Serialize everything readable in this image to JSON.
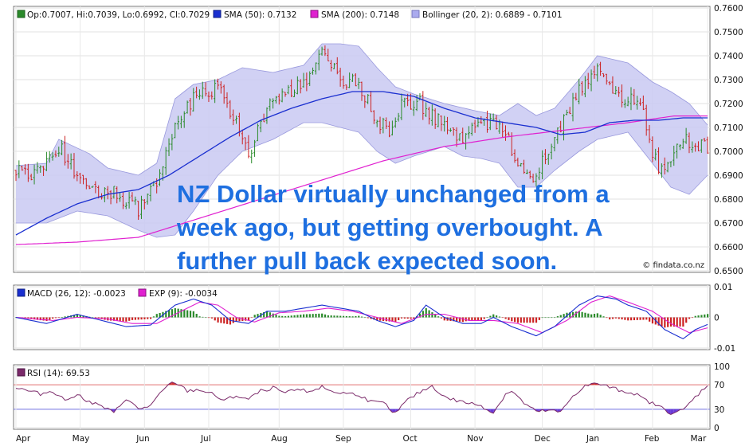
{
  "watermark": "© findata.co.nz",
  "overlay_lines": [
    "NZ Dollar virtually unchanged from a",
    "week ago, but getting overbought. A",
    "further pull back expected soon."
  ],
  "colors": {
    "up": "#2a8a2a",
    "down": "#cc2222",
    "sma50": "#1a2fd0",
    "sma200": "#e020d0",
    "bollinger_fill": "#c9c9f2",
    "bollinger_line": "#9999dd",
    "macd": "#1a2fd0",
    "exp": "#e020d0",
    "rsi": "#7b2a6a",
    "rsi_extreme": "#6a3ad8",
    "overlay_text": "#1e6fe0"
  },
  "chart_data": [
    {
      "type": "candlestick",
      "panel": "price",
      "legend": [
        {
          "label": "Op:0.7007, Hi:0.7039, Lo:0.6992, Cl:0.7029",
          "color": "#2a8a2a"
        },
        {
          "label": "SMA (50): 0.7132",
          "color": "#1a2fd0"
        },
        {
          "label": "SMA (200): 0.7148",
          "color": "#e020d0"
        },
        {
          "label": "Bollinger (20, 2): 0.6889 - 0.7101",
          "color": "#aaaaee"
        }
      ],
      "ylim": [
        0.65,
        0.76
      ],
      "y_ticks": [
        "0.7600",
        "0.7500",
        "0.7400",
        "0.7300",
        "0.7200",
        "0.7100",
        "0.7000",
        "0.6900",
        "0.6800",
        "0.6700",
        "0.6600",
        "0.6500"
      ],
      "grid": true,
      "close_points": [
        [
          0,
          0.692
        ],
        [
          6,
          0.69
        ],
        [
          14,
          0.702
        ],
        [
          24,
          0.683
        ],
        [
          32,
          0.683
        ],
        [
          40,
          0.676
        ],
        [
          46,
          0.687
        ],
        [
          52,
          0.712
        ],
        [
          58,
          0.722
        ],
        [
          66,
          0.727
        ],
        [
          72,
          0.712
        ],
        [
          76,
          0.698
        ],
        [
          82,
          0.718
        ],
        [
          88,
          0.724
        ],
        [
          96,
          0.73
        ],
        [
          100,
          0.742
        ],
        [
          106,
          0.73
        ],
        [
          112,
          0.728
        ],
        [
          118,
          0.713
        ],
        [
          122,
          0.709
        ],
        [
          126,
          0.72
        ],
        [
          132,
          0.72
        ],
        [
          140,
          0.71
        ],
        [
          146,
          0.706
        ],
        [
          152,
          0.712
        ],
        [
          158,
          0.712
        ],
        [
          164,
          0.696
        ],
        [
          168,
          0.688
        ],
        [
          172,
          0.696
        ],
        [
          178,
          0.71
        ],
        [
          184,
          0.725
        ],
        [
          190,
          0.737
        ],
        [
          196,
          0.725
        ],
        [
          200,
          0.722
        ],
        [
          204,
          0.722
        ],
        [
          208,
          0.698
        ],
        [
          212,
          0.69
        ],
        [
          218,
          0.705
        ],
        [
          222,
          0.703
        ],
        [
          226,
          0.701
        ]
      ],
      "sma50": [
        [
          0,
          0.665
        ],
        [
          10,
          0.672
        ],
        [
          20,
          0.678
        ],
        [
          30,
          0.682
        ],
        [
          40,
          0.684
        ],
        [
          50,
          0.69
        ],
        [
          60,
          0.698
        ],
        [
          70,
          0.706
        ],
        [
          80,
          0.713
        ],
        [
          90,
          0.718
        ],
        [
          100,
          0.722
        ],
        [
          110,
          0.725
        ],
        [
          120,
          0.725
        ],
        [
          130,
          0.723
        ],
        [
          140,
          0.718
        ],
        [
          150,
          0.714
        ],
        [
          160,
          0.712
        ],
        [
          170,
          0.71
        ],
        [
          178,
          0.707
        ],
        [
          186,
          0.708
        ],
        [
          194,
          0.712
        ],
        [
          202,
          0.713
        ],
        [
          210,
          0.713
        ],
        [
          218,
          0.714
        ],
        [
          226,
          0.714
        ]
      ],
      "sma200": [
        [
          0,
          0.661
        ],
        [
          20,
          0.662
        ],
        [
          40,
          0.664
        ],
        [
          60,
          0.672
        ],
        [
          80,
          0.68
        ],
        [
          100,
          0.688
        ],
        [
          120,
          0.696
        ],
        [
          140,
          0.702
        ],
        [
          160,
          0.706
        ],
        [
          180,
          0.709
        ],
        [
          200,
          0.712
        ],
        [
          215,
          0.7148
        ],
        [
          226,
          0.7148
        ]
      ],
      "bollinger_upper": [
        [
          0,
          0.694
        ],
        [
          10,
          0.695
        ],
        [
          14,
          0.705
        ],
        [
          24,
          0.699
        ],
        [
          30,
          0.693
        ],
        [
          40,
          0.69
        ],
        [
          46,
          0.695
        ],
        [
          52,
          0.722
        ],
        [
          58,
          0.728
        ],
        [
          66,
          0.73
        ],
        [
          74,
          0.735
        ],
        [
          84,
          0.733
        ],
        [
          94,
          0.736
        ],
        [
          100,
          0.745
        ],
        [
          106,
          0.745
        ],
        [
          112,
          0.744
        ],
        [
          118,
          0.735
        ],
        [
          124,
          0.727
        ],
        [
          130,
          0.724
        ],
        [
          140,
          0.72
        ],
        [
          150,
          0.717
        ],
        [
          158,
          0.715
        ],
        [
          164,
          0.72
        ],
        [
          170,
          0.715
        ],
        [
          176,
          0.718
        ],
        [
          184,
          0.73
        ],
        [
          190,
          0.74
        ],
        [
          200,
          0.737
        ],
        [
          208,
          0.729
        ],
        [
          214,
          0.725
        ],
        [
          220,
          0.72
        ],
        [
          226,
          0.711
        ]
      ],
      "bollinger_lower": [
        [
          0,
          0.67
        ],
        [
          10,
          0.67
        ],
        [
          20,
          0.675
        ],
        [
          30,
          0.673
        ],
        [
          40,
          0.667
        ],
        [
          46,
          0.664
        ],
        [
          52,
          0.665
        ],
        [
          58,
          0.675
        ],
        [
          66,
          0.69
        ],
        [
          74,
          0.7
        ],
        [
          84,
          0.705
        ],
        [
          94,
          0.712
        ],
        [
          100,
          0.712
        ],
        [
          106,
          0.71
        ],
        [
          112,
          0.708
        ],
        [
          118,
          0.7
        ],
        [
          124,
          0.695
        ],
        [
          130,
          0.698
        ],
        [
          140,
          0.702
        ],
        [
          146,
          0.698
        ],
        [
          152,
          0.697
        ],
        [
          158,
          0.695
        ],
        [
          164,
          0.685
        ],
        [
          170,
          0.685
        ],
        [
          176,
          0.692
        ],
        [
          184,
          0.7
        ],
        [
          190,
          0.705
        ],
        [
          200,
          0.708
        ],
        [
          208,
          0.695
        ],
        [
          214,
          0.685
        ],
        [
          220,
          0.682
        ],
        [
          226,
          0.69
        ]
      ]
    },
    {
      "type": "bar",
      "panel": "macd",
      "legend": [
        {
          "label": "MACD (26, 12): -0.0023",
          "color": "#1a2fd0"
        },
        {
          "label": "EXP (9): -0.0034",
          "color": "#e020d0"
        }
      ],
      "ylim": [
        -0.01,
        0.01
      ],
      "y_ticks": [
        "0.01",
        "0",
        "-0.01"
      ],
      "macd_points": [
        [
          0,
          0.0
        ],
        [
          10,
          -0.002
        ],
        [
          20,
          0.001
        ],
        [
          28,
          -0.001
        ],
        [
          36,
          -0.003
        ],
        [
          44,
          -0.0025
        ],
        [
          52,
          0.004
        ],
        [
          58,
          0.006
        ],
        [
          64,
          0.004
        ],
        [
          70,
          -0.001
        ],
        [
          76,
          -0.002
        ],
        [
          82,
          0.002
        ],
        [
          88,
          0.002
        ],
        [
          94,
          0.003
        ],
        [
          100,
          0.004
        ],
        [
          106,
          0.003
        ],
        [
          112,
          0.002
        ],
        [
          118,
          -0.001
        ],
        [
          124,
          -0.003
        ],
        [
          130,
          -0.001
        ],
        [
          134,
          0.004
        ],
        [
          140,
          0.0
        ],
        [
          146,
          -0.002
        ],
        [
          152,
          -0.002
        ],
        [
          156,
          0.0
        ],
        [
          162,
          -0.003
        ],
        [
          170,
          -0.006
        ],
        [
          176,
          -0.003
        ],
        [
          184,
          0.004
        ],
        [
          190,
          0.007
        ],
        [
          196,
          0.006
        ],
        [
          200,
          0.004
        ],
        [
          206,
          0.002
        ],
        [
          212,
          -0.004
        ],
        [
          218,
          -0.007
        ],
        [
          222,
          -0.004
        ],
        [
          226,
          -0.0023
        ]
      ],
      "exp_points": [
        [
          0,
          0.0
        ],
        [
          12,
          -0.001
        ],
        [
          20,
          0.0
        ],
        [
          30,
          -0.0005
        ],
        [
          38,
          -0.002
        ],
        [
          46,
          -0.002
        ],
        [
          52,
          0.001
        ],
        [
          60,
          0.005
        ],
        [
          66,
          0.004
        ],
        [
          72,
          0.0
        ],
        [
          78,
          -0.0015
        ],
        [
          86,
          0.0015
        ],
        [
          94,
          0.002
        ],
        [
          102,
          0.003
        ],
        [
          110,
          0.002
        ],
        [
          118,
          0.0
        ],
        [
          126,
          -0.002
        ],
        [
          134,
          0.001
        ],
        [
          140,
          0.001
        ],
        [
          148,
          -0.001
        ],
        [
          156,
          -0.001
        ],
        [
          164,
          -0.002
        ],
        [
          172,
          -0.005
        ],
        [
          180,
          -0.001
        ],
        [
          188,
          0.005
        ],
        [
          194,
          0.007
        ],
        [
          200,
          0.005
        ],
        [
          208,
          0.002
        ],
        [
          214,
          -0.002
        ],
        [
          220,
          -0.005
        ],
        [
          226,
          -0.0034
        ]
      ]
    },
    {
      "type": "line",
      "panel": "rsi",
      "legend": [
        {
          "label": "RSI (14): 69.53",
          "color": "#7b2a6a"
        }
      ],
      "ylim": [
        0,
        100
      ],
      "y_ticks": [
        "100",
        "70",
        "30",
        "0"
      ],
      "levels": [
        70,
        30
      ],
      "rsi_points": [
        [
          0,
          65
        ],
        [
          4,
          60
        ],
        [
          8,
          55
        ],
        [
          12,
          60
        ],
        [
          16,
          45
        ],
        [
          20,
          55
        ],
        [
          24,
          42
        ],
        [
          28,
          35
        ],
        [
          32,
          24
        ],
        [
          36,
          48
        ],
        [
          40,
          30
        ],
        [
          44,
          36
        ],
        [
          48,
          60
        ],
        [
          50,
          70
        ],
        [
          52,
          74
        ],
        [
          56,
          60
        ],
        [
          60,
          62
        ],
        [
          64,
          55
        ],
        [
          68,
          44
        ],
        [
          72,
          52
        ],
        [
          76,
          46
        ],
        [
          80,
          60
        ],
        [
          84,
          65
        ],
        [
          88,
          56
        ],
        [
          92,
          62
        ],
        [
          96,
          60
        ],
        [
          100,
          66
        ],
        [
          104,
          58
        ],
        [
          108,
          56
        ],
        [
          112,
          54
        ],
        [
          116,
          42
        ],
        [
          120,
          40
        ],
        [
          124,
          24
        ],
        [
          128,
          45
        ],
        [
          132,
          58
        ],
        [
          136,
          68
        ],
        [
          140,
          50
        ],
        [
          144,
          44
        ],
        [
          148,
          40
        ],
        [
          152,
          36
        ],
        [
          156,
          24
        ],
        [
          160,
          55
        ],
        [
          162,
          60
        ],
        [
          166,
          40
        ],
        [
          170,
          26
        ],
        [
          174,
          28
        ],
        [
          178,
          25
        ],
        [
          182,
          52
        ],
        [
          186,
          68
        ],
        [
          190,
          72
        ],
        [
          194,
          66
        ],
        [
          198,
          60
        ],
        [
          202,
          56
        ],
        [
          206,
          44
        ],
        [
          210,
          35
        ],
        [
          214,
          24
        ],
        [
          218,
          28
        ],
        [
          222,
          50
        ],
        [
          226,
          69.53
        ]
      ],
      "x_labels": [
        "Apr",
        "May",
        "Jun",
        "Jul",
        "Aug",
        "Sep",
        "Oct",
        "Nov",
        "Dec",
        "Jan",
        "Feb",
        "Mar"
      ]
    }
  ]
}
